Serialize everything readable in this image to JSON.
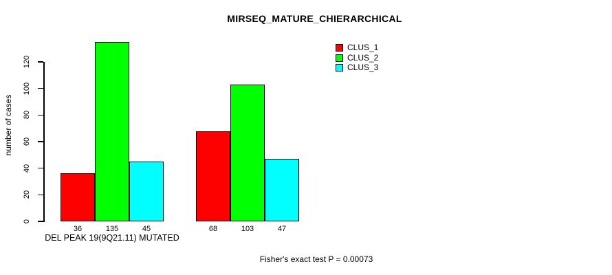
{
  "title": "MIRSEQ_MATURE_CHIERARCHICAL",
  "chart_data": {
    "type": "bar",
    "title": "MIRSEQ_MATURE_CHIERARCHICAL",
    "ylabel": "number of cases",
    "xlabel": "DEL PEAK 19(9Q21.11) MUTATED",
    "yticks": [
      0,
      20,
      40,
      60,
      80,
      100,
      120
    ],
    "ylim": [
      0,
      140
    ],
    "grid": false,
    "legend_position": "top-right",
    "series": [
      {
        "name": "CLUS_1",
        "color": "#ff0000"
      },
      {
        "name": "CLUS_2",
        "color": "#00ff00"
      },
      {
        "name": "CLUS_3",
        "color": "#00ffff"
      }
    ],
    "groups": [
      {
        "label": "DEL PEAK 19(9Q21.11) MUTATED",
        "values": [
          36,
          135,
          45
        ]
      },
      {
        "label": "",
        "values": [
          68,
          103,
          47
        ]
      }
    ],
    "annotation": "Fisher's exact test P = 0.00073"
  }
}
